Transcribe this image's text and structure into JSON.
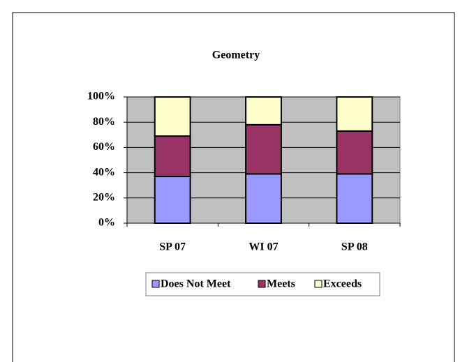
{
  "chart_data": {
    "type": "stacked_bar_100",
    "title": "Geometry",
    "categories": [
      "SP 07",
      "WI 07",
      "SP 08"
    ],
    "series": [
      {
        "name": "Does Not Meet",
        "color": "#9999ff",
        "values": [
          37,
          39,
          39
        ]
      },
      {
        "name": "Meets",
        "color": "#993366",
        "values": [
          32,
          39,
          34
        ]
      },
      {
        "name": "Exceeds",
        "color": "#ffffcc",
        "values": [
          31,
          22,
          27
        ]
      }
    ],
    "ylim": [
      0,
      100
    ],
    "yticks": [
      {
        "value": 0,
        "label": "0%"
      },
      {
        "value": 20,
        "label": "20%"
      },
      {
        "value": 40,
        "label": "40%"
      },
      {
        "value": 60,
        "label": "60%"
      },
      {
        "value": 80,
        "label": "80%"
      },
      {
        "value": 100,
        "label": "100%"
      }
    ],
    "grid": true,
    "plot_background": "#c0c0c0",
    "legend": "bottom"
  }
}
